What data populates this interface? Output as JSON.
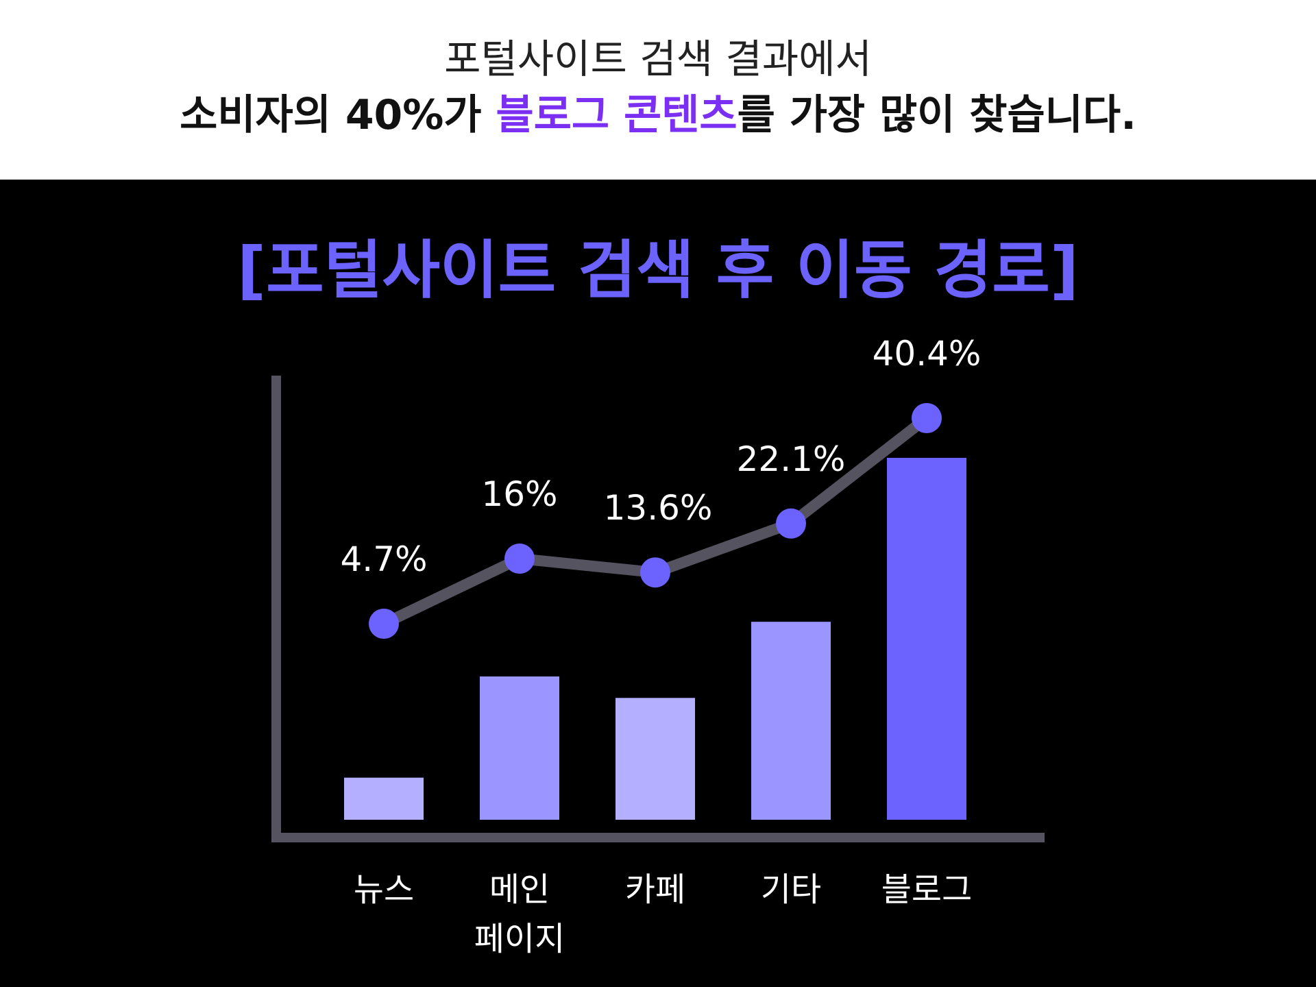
{
  "header": {
    "line1": "포털사이트 검색 결과에서",
    "line2_prefix": "소비자의 40%가 ",
    "line2_highlight": "블로그 콘텐츠",
    "line2_suffix": "를 가장 많이 찾습니다."
  },
  "chart_data": {
    "type": "bar",
    "title": "[포털사이트 검색 후 이동 경로]",
    "categories": [
      "뉴스",
      "메인\n페이지",
      "카페",
      "기타",
      "블로그"
    ],
    "category_lines": [
      [
        "뉴스"
      ],
      [
        "메인",
        "페이지"
      ],
      [
        "카페"
      ],
      [
        "기타"
      ],
      [
        "블로그"
      ]
    ],
    "values": [
      4.7,
      16,
      13.6,
      22.1,
      40.4
    ],
    "labels": [
      "4.7%",
      "16%",
      "13.6%",
      "22.1%",
      "40.4%"
    ],
    "overlay": "line",
    "grid": false,
    "legend": "none",
    "colors": {
      "bars": [
        "#b4b0ff",
        "#9b96ff",
        "#b4b0ff",
        "#9b96ff",
        "#6c63ff"
      ],
      "line": "#55535f",
      "markers": "#6c63ff",
      "axis": "#55535f",
      "title": "#6c63ff",
      "highlight": "#7b2ff2"
    }
  }
}
